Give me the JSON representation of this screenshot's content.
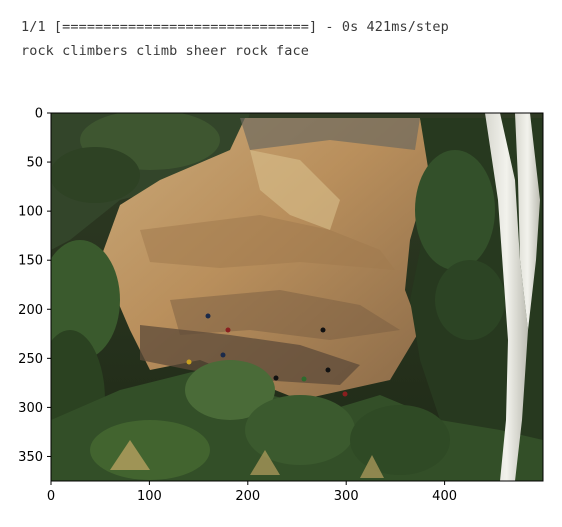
{
  "output": {
    "progress_text": "1/1 [==============================] - 0s 421ms/step",
    "caption_text": "rock climbers climb sheer rock face"
  },
  "plot": {
    "image_subject": "photo of rock climbers on a sheer sandstone cliff face surrounded by trees",
    "x_axis": {
      "range": [
        0,
        500
      ],
      "ticks": [
        {
          "value": 0,
          "label": "0"
        },
        {
          "value": 100,
          "label": "100"
        },
        {
          "value": 200,
          "label": "200"
        },
        {
          "value": 300,
          "label": "300"
        },
        {
          "value": 400,
          "label": "400"
        }
      ]
    },
    "y_axis": {
      "range": [
        0,
        375
      ],
      "ticks": [
        {
          "value": 0,
          "label": "0"
        },
        {
          "value": 50,
          "label": "50"
        },
        {
          "value": 100,
          "label": "100"
        },
        {
          "value": 150,
          "label": "150"
        },
        {
          "value": 200,
          "label": "200"
        },
        {
          "value": 250,
          "label": "250"
        },
        {
          "value": 300,
          "label": "300"
        },
        {
          "value": 350,
          "label": "350"
        }
      ]
    }
  }
}
